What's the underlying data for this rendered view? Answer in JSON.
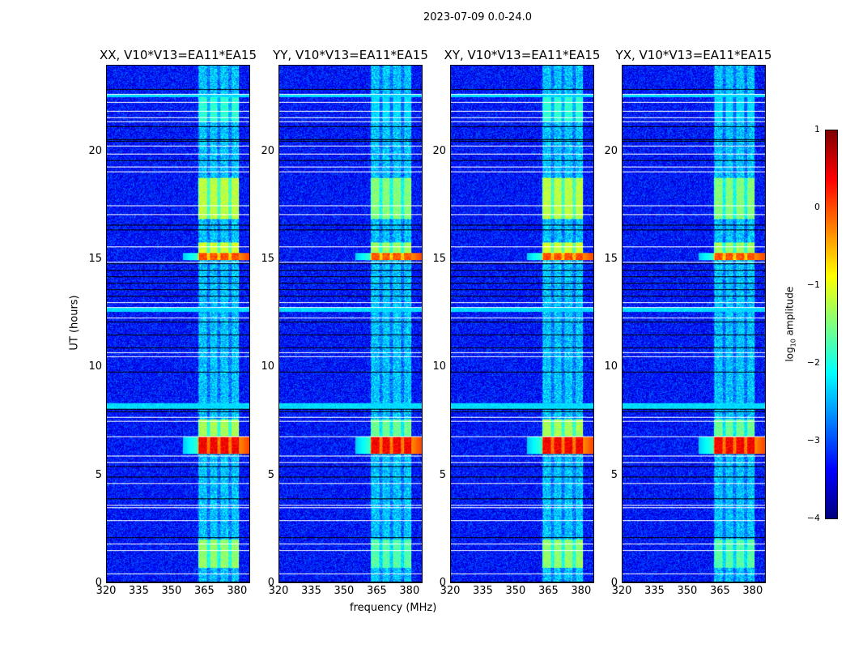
{
  "chart_data": {
    "type": "heatmap",
    "title": "2023-07-09 0.0-24.0",
    "xlabel": "frequency (MHz)",
    "ylabel": "UT (hours)",
    "xlim": [
      320,
      386
    ],
    "ylim": [
      0,
      24
    ],
    "xticks": [
      320,
      335,
      350,
      365,
      380
    ],
    "yticks": [
      0,
      5,
      10,
      15,
      20
    ],
    "panels": [
      {
        "title": "XX, V10*V13=EA11*EA15",
        "gain": 1.0
      },
      {
        "title": "YY, V10*V13=EA11*EA15",
        "gain": 0.85
      },
      {
        "title": "XY, V10*V13=EA11*EA15",
        "gain": 1.0
      },
      {
        "title": "YX, V10*V13=EA11*EA15",
        "gain": 0.85
      }
    ],
    "colorbar": {
      "label": "log10 amplitude",
      "label_main": "log",
      "label_sub": "10",
      "label_rest": " amplitude",
      "range": [
        -4,
        1
      ],
      "ticks": [
        1,
        0,
        -1,
        -2,
        -3,
        -4
      ],
      "colormap": "jet"
    },
    "background_log_amplitude": -3.3,
    "rfi_channels_mhz": [
      [
        362.5,
        366
      ],
      [
        367.5,
        371
      ],
      [
        372.5,
        376
      ],
      [
        377.5,
        381
      ]
    ],
    "events": [
      {
        "t": [
          0.7,
          2.0
        ],
        "level": -1.7
      },
      {
        "t": [
          6.0,
          6.8
        ],
        "level": 0.1
      },
      {
        "t": [
          6.8,
          7.6
        ],
        "level": -1.6
      },
      {
        "t": [
          15.0,
          15.3
        ],
        "level": -0.3
      },
      {
        "t": [
          15.3,
          15.8
        ],
        "level": -1.4
      },
      {
        "t": [
          16.9,
          18.8
        ],
        "level": -1.5
      },
      {
        "t": [
          21.4,
          22.6
        ],
        "level": -2.2
      }
    ],
    "flagged_hours_white": [
      0.4,
      1.5,
      1.8,
      2.9,
      3.5,
      3.6,
      4.6,
      5.6,
      5.9,
      6.8,
      7.5,
      7.7,
      10.5,
      10.7,
      12.3,
      12.8,
      13.0,
      14.9,
      15.6,
      17.1,
      17.5,
      19.1,
      19.3,
      19.9,
      20.3,
      21.4,
      21.6,
      21.9,
      22.3,
      22.7
    ],
    "flagged_hours_black": [
      0.05,
      2.1,
      3.9,
      4.9,
      5.4,
      7.95,
      8.05,
      9.8,
      10.9,
      11.5,
      12.1,
      13.3,
      13.6,
      13.9,
      14.2,
      14.5,
      14.8,
      16.4,
      16.6,
      19.6,
      20.5,
      20.6,
      21.2,
      22.9
    ],
    "cyan_bands": [
      [
        8.1,
        8.35
      ],
      [
        12.6,
        12.8
      ],
      [
        22.55,
        22.7
      ]
    ]
  }
}
